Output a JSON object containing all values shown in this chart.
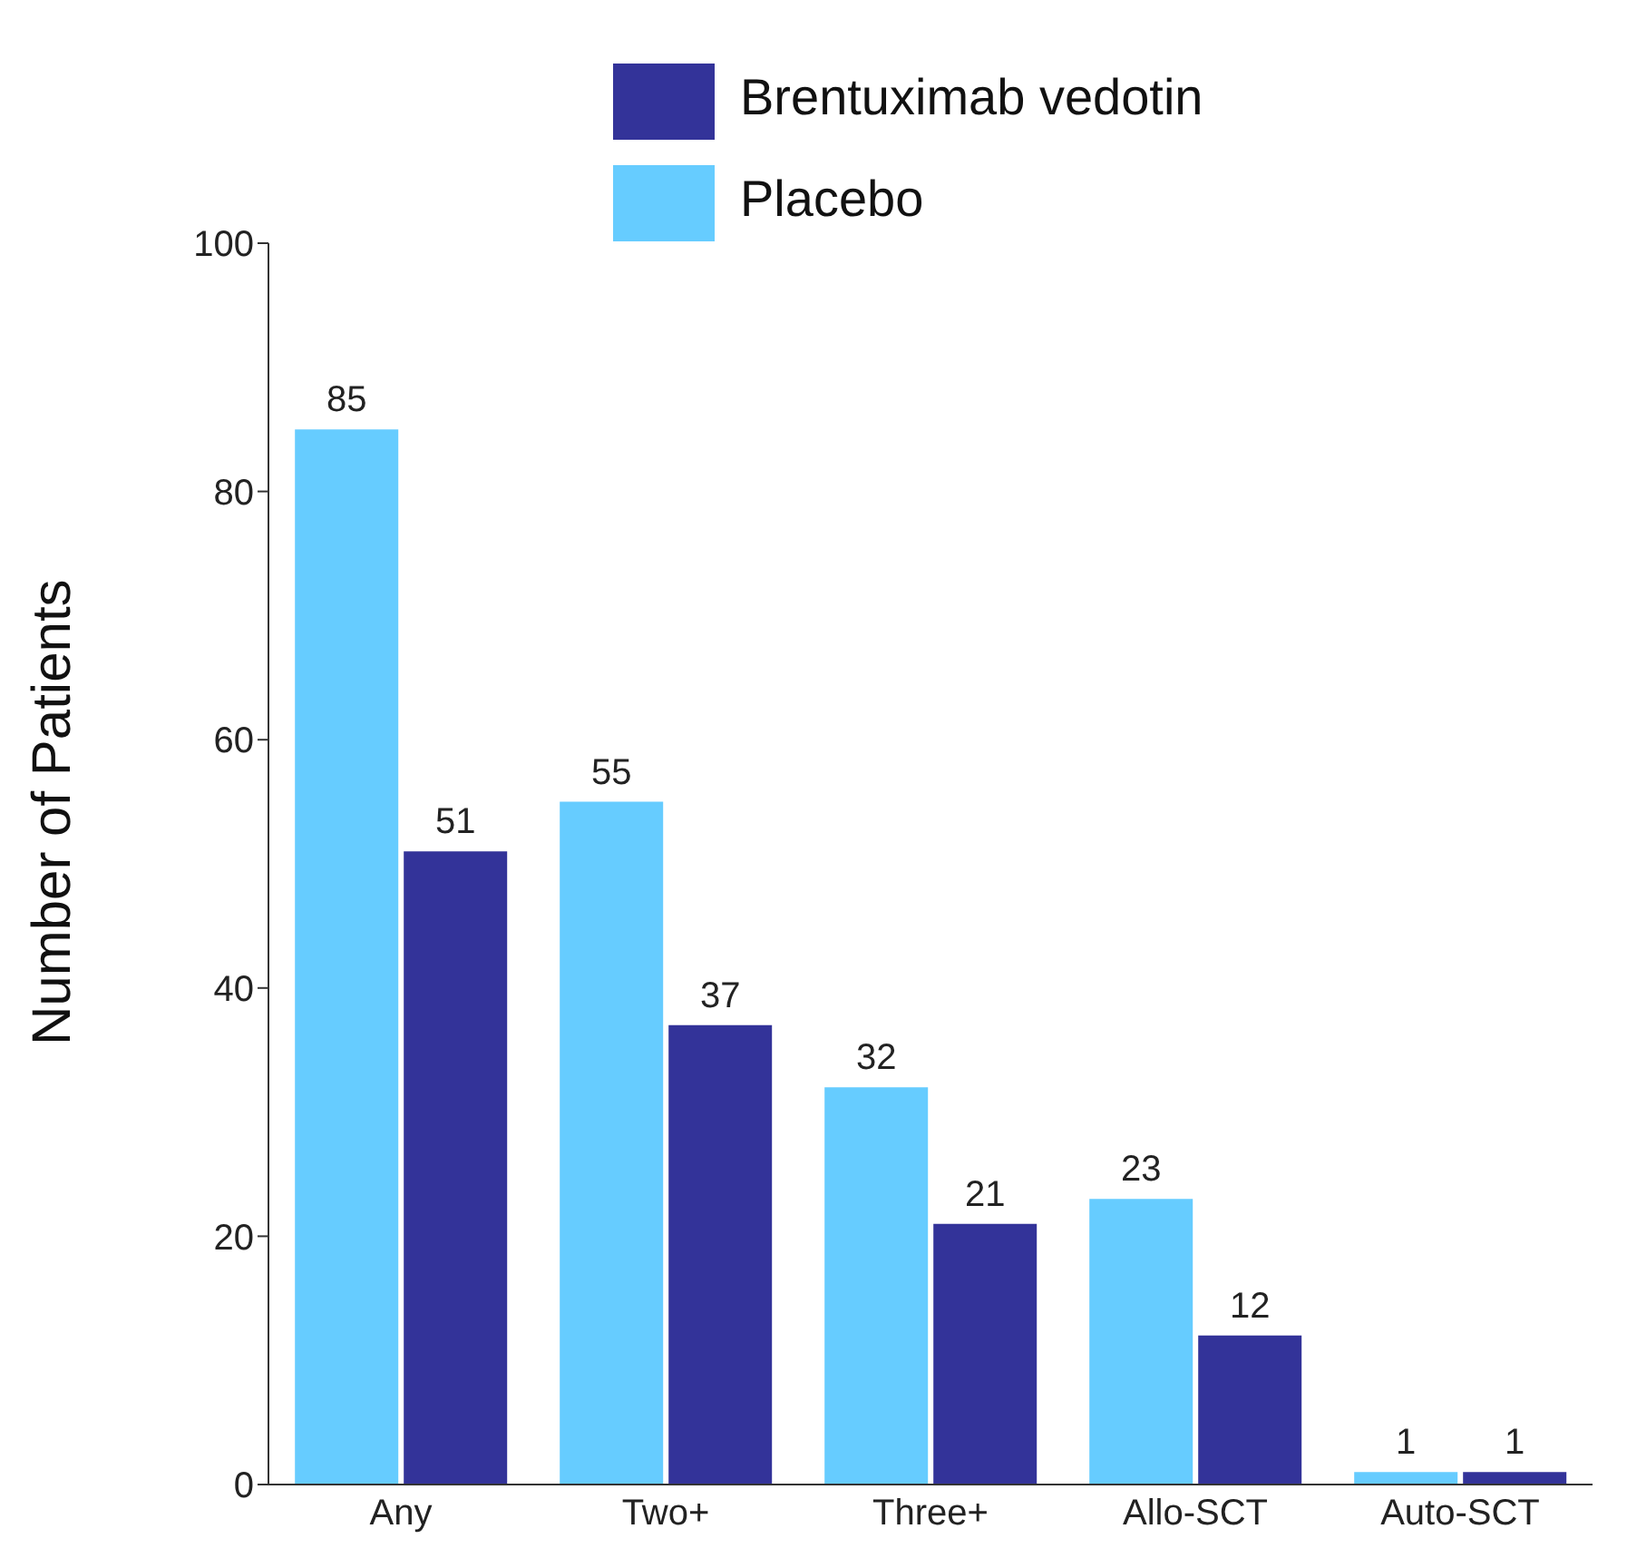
{
  "chart_data": {
    "type": "bar",
    "ylabel": "Number of Patients",
    "categories": [
      "Any",
      "Two+",
      "Three+",
      "Allo-SCT",
      "Auto-SCT"
    ],
    "series": [
      {
        "name": "Placebo",
        "color": "#66ccff",
        "values": [
          85,
          55,
          32,
          23,
          1
        ]
      },
      {
        "name": "Brentuximab vedotin",
        "color": "#333399",
        "values": [
          51,
          37,
          21,
          12,
          1
        ]
      }
    ],
    "ylim": [
      0,
      100
    ],
    "yticks": [
      0,
      20,
      40,
      60,
      80,
      100
    ],
    "grid": false,
    "legend": "top",
    "data_labels": true
  }
}
